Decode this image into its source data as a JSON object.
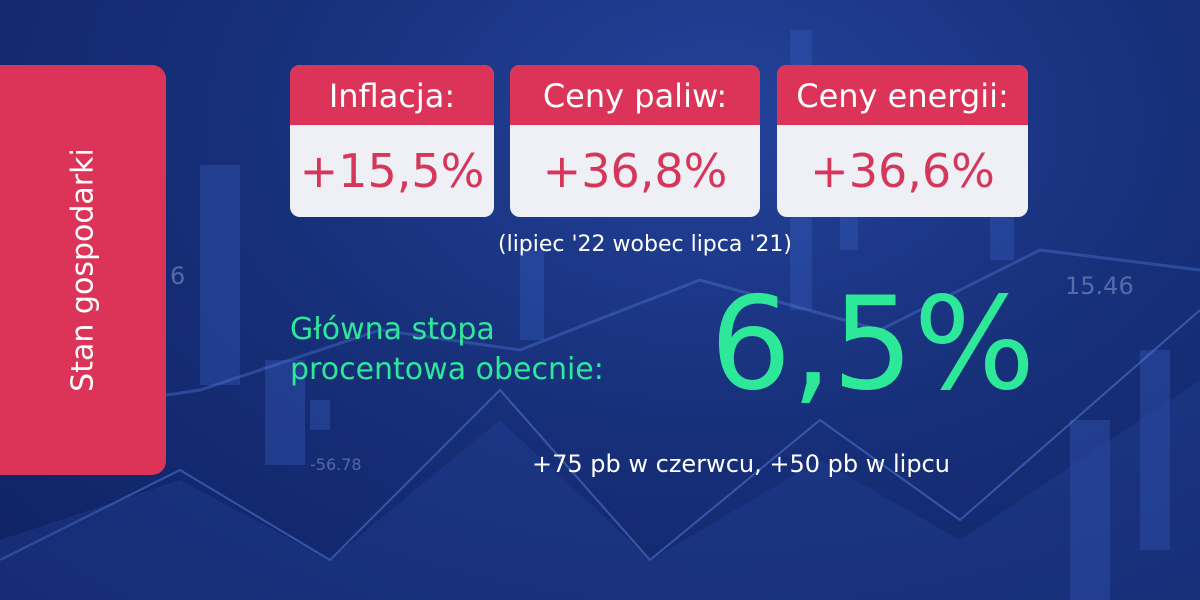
{
  "side_label": "Stan gospodarki",
  "cards": [
    {
      "label": "Inflacja:",
      "value": "+15,5%"
    },
    {
      "label": "Ceny paliw:",
      "value": "+36,8%"
    },
    {
      "label": "Ceny energii:",
      "value": "+36,6%"
    }
  ],
  "note": "(lipiec '22 wobec lipca '21)",
  "main": {
    "label": [
      "Główna stopa",
      "procentowa obecnie:"
    ],
    "value": "6,5%"
  },
  "sub_note": "+75 pb w czerwcu, +50 pb w lipcu",
  "background": {
    "labels": [
      "15.46",
      "-56.78",
      "6"
    ]
  }
}
